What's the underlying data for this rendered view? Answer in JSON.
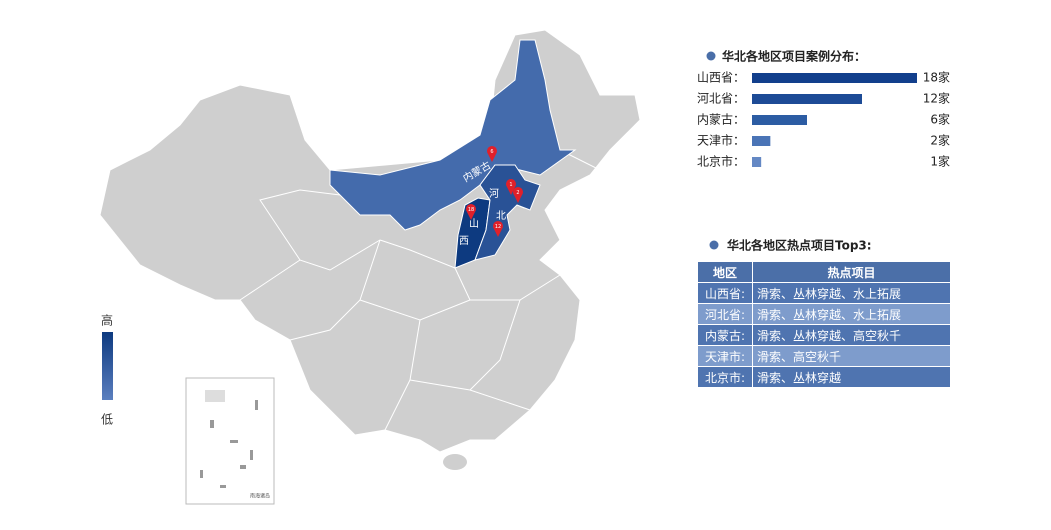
{
  "map": {
    "legend": {
      "high": "高",
      "low": "低",
      "colors": [
        "#5b7fbf",
        "#0d3a80"
      ]
    },
    "inset_label": "南海诸岛",
    "regions": [
      {
        "label_parts": [
          "内蒙古"
        ],
        "count": 6
      },
      {
        "label_parts": [],
        "count": 1
      },
      {
        "label_parts": [],
        "count": 2
      },
      {
        "label_parts": [
          "山",
          "西"
        ],
        "count": 18
      },
      {
        "label_parts": [
          "河",
          "北"
        ],
        "count": 12
      }
    ]
  },
  "chart_data": {
    "type": "bar",
    "title": "华北各地区项目案例分布：",
    "categories": [
      "山西省：",
      "河北省：",
      "内蒙古：",
      "天津市：",
      "北京市："
    ],
    "values": [
      18,
      12,
      6,
      2,
      1
    ],
    "value_labels": [
      "18家",
      "12家",
      "6家",
      "2家",
      "1家"
    ],
    "colors": [
      "#123f8c",
      "#1d4b96",
      "#2c5ca3",
      "#4a74b6",
      "#6488c4"
    ],
    "xlim": [
      0,
      18
    ]
  },
  "table": {
    "title": "华北各地区热点项目Top3:",
    "header": [
      "地区",
      "热点项目"
    ],
    "rows": [
      [
        "山西省:",
        "滑索、丛林穿越、水上拓展"
      ],
      [
        "河北省:",
        "滑索、丛林穿越、水上拓展"
      ],
      [
        "内蒙古:",
        "滑索、丛林穿越、高空秋千"
      ],
      [
        "天津市:",
        "滑索、高空秋千"
      ],
      [
        "北京市:",
        "滑索、丛林穿越"
      ]
    ]
  }
}
